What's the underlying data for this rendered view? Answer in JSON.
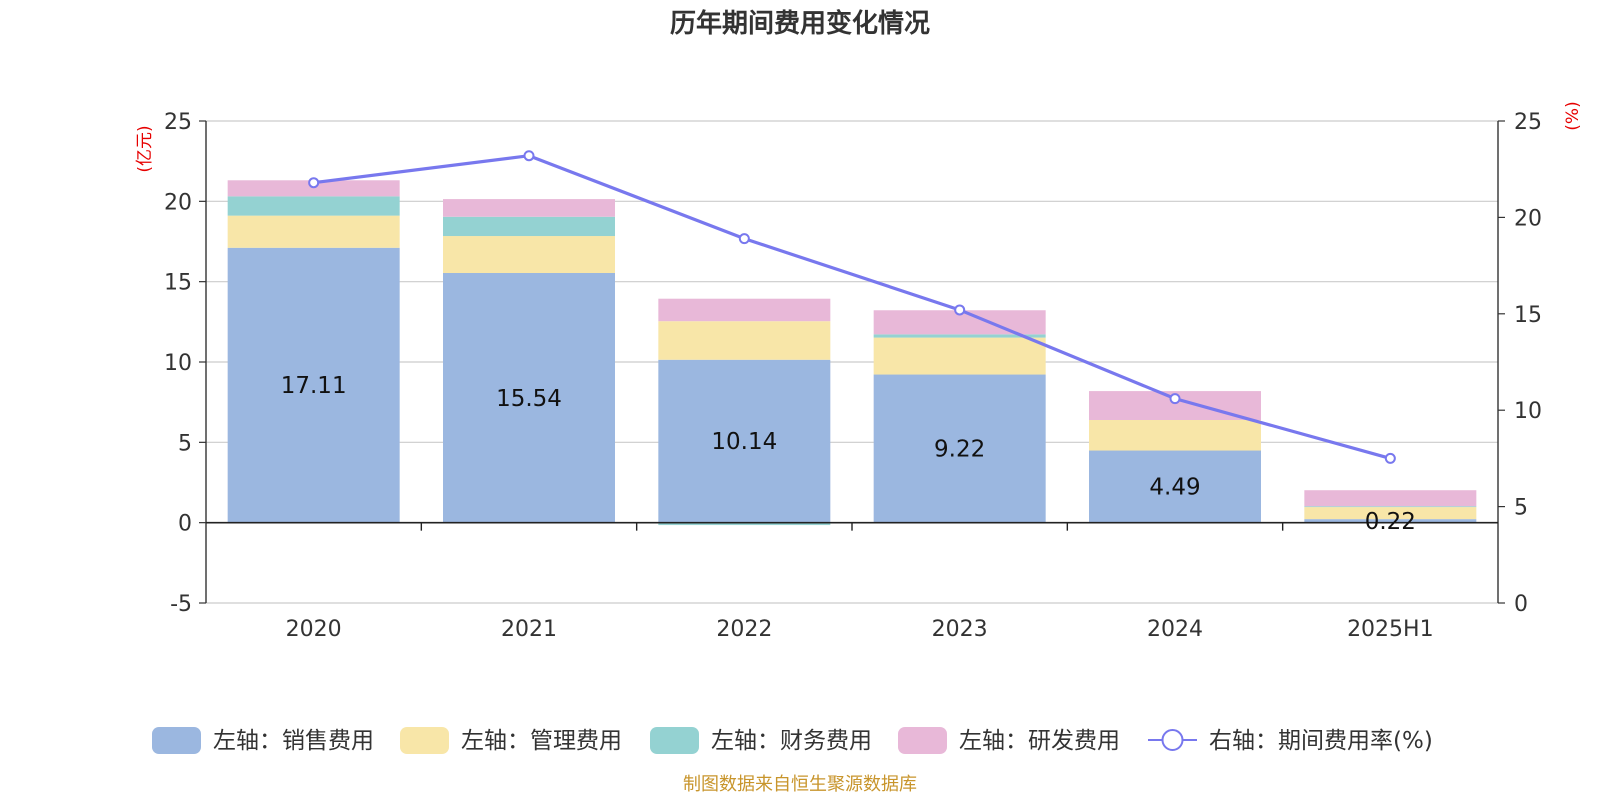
{
  "chart_data": {
    "type": "bar",
    "title": "历年期间费用变化情况",
    "categories": [
      "2020",
      "2021",
      "2022",
      "2023",
      "2024",
      "2025H1"
    ],
    "left_axis": {
      "unit": "(亿元)",
      "ylim": [
        -5,
        25
      ],
      "ticks": [
        -5,
        0,
        5,
        10,
        15,
        20,
        25
      ]
    },
    "right_axis": {
      "unit": "(%)",
      "ylim": [
        0,
        25
      ],
      "ticks": [
        0,
        5,
        10,
        15,
        20,
        25
      ]
    },
    "grid": true,
    "legend_position": "bottom",
    "series": [
      {
        "name": "左轴：销售费用",
        "axis": "left",
        "stack": true,
        "color": "#9bb7e0",
        "values": [
          17.11,
          15.54,
          10.14,
          9.22,
          4.49,
          0.22
        ],
        "labels": [
          "17.11",
          "15.54",
          "10.14",
          "9.22",
          "4.49",
          "0.22"
        ]
      },
      {
        "name": "左轴：管理费用",
        "axis": "left",
        "stack": true,
        "color": "#f8e6a8",
        "values": [
          2.0,
          2.3,
          2.4,
          2.3,
          1.9,
          0.75
        ]
      },
      {
        "name": "左轴：财务费用",
        "axis": "left",
        "stack": true,
        "color": "#94d2d2",
        "values": [
          1.2,
          1.2,
          -0.15,
          0.2,
          -0.05,
          0.05
        ]
      },
      {
        "name": "左轴：研发费用",
        "axis": "left",
        "stack": true,
        "color": "#e8b8d8",
        "values": [
          1.0,
          1.1,
          1.4,
          1.5,
          1.8,
          1.0
        ]
      },
      {
        "name": "右轴：期间费用率(%)",
        "axis": "right",
        "type": "line",
        "color": "#7878ee",
        "values": [
          21.8,
          23.2,
          18.9,
          15.2,
          10.6,
          7.5
        ]
      }
    ],
    "source": "制图数据来自恒生聚源数据库"
  }
}
